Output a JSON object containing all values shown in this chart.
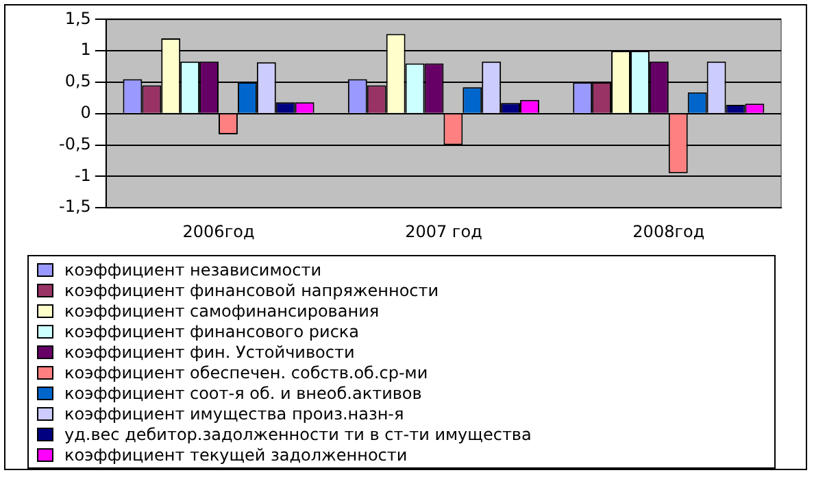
{
  "chart_data": {
    "type": "bar",
    "categories": [
      "2006год",
      "2007 год",
      "2008год"
    ],
    "series": [
      {
        "name": "коэффициент независимости",
        "color": "#9999ff",
        "values": [
          0.55,
          0.55,
          0.5
        ]
      },
      {
        "name": "коэффициент финансовой напряженности",
        "color": "#993366",
        "values": [
          0.45,
          0.45,
          0.5
        ]
      },
      {
        "name": "коэффициент самофинансирования",
        "color": "#ffffcc",
        "values": [
          1.2,
          1.27,
          1.0
        ]
      },
      {
        "name": "коэффициент финансового риска",
        "color": "#ccffff",
        "values": [
          0.83,
          0.8,
          1.0
        ]
      },
      {
        "name": "коэффициент фин. Устойчивости",
        "color": "#660066",
        "values": [
          0.83,
          0.8,
          0.83
        ]
      },
      {
        "name": "коэффициент  обеспечен. собств.об.ср-ми",
        "color": "#ff8080",
        "values": [
          -0.33,
          -0.5,
          -0.95
        ]
      },
      {
        "name": "коэффициент соот-я об. и внеоб.активов",
        "color": "#0066cc",
        "values": [
          0.5,
          0.42,
          0.34
        ]
      },
      {
        "name": "коэффициент имущества произ.назн-я",
        "color": "#ccccff",
        "values": [
          0.82,
          0.83,
          0.83
        ]
      },
      {
        "name": "уд.вес дебитор.задолженности ти в ст-ти имущества",
        "color": "#000080",
        "values": [
          0.18,
          0.17,
          0.14
        ]
      },
      {
        "name": "коэффициент текущей задолженности",
        "color": "#ff00ff",
        "values": [
          0.18,
          0.22,
          0.16
        ]
      }
    ],
    "ylim": [
      -1.5,
      1.5
    ],
    "yticks": [
      {
        "value": -1.5,
        "label": "-1,5"
      },
      -1,
      {
        "value": -0.5,
        "label": "-0,5"
      },
      0,
      {
        "value": 0.5,
        "label": "0,5"
      },
      1,
      {
        "value": 1.5,
        "label": "1,5"
      }
    ],
    "grid": "y",
    "legend": "bottom"
  }
}
